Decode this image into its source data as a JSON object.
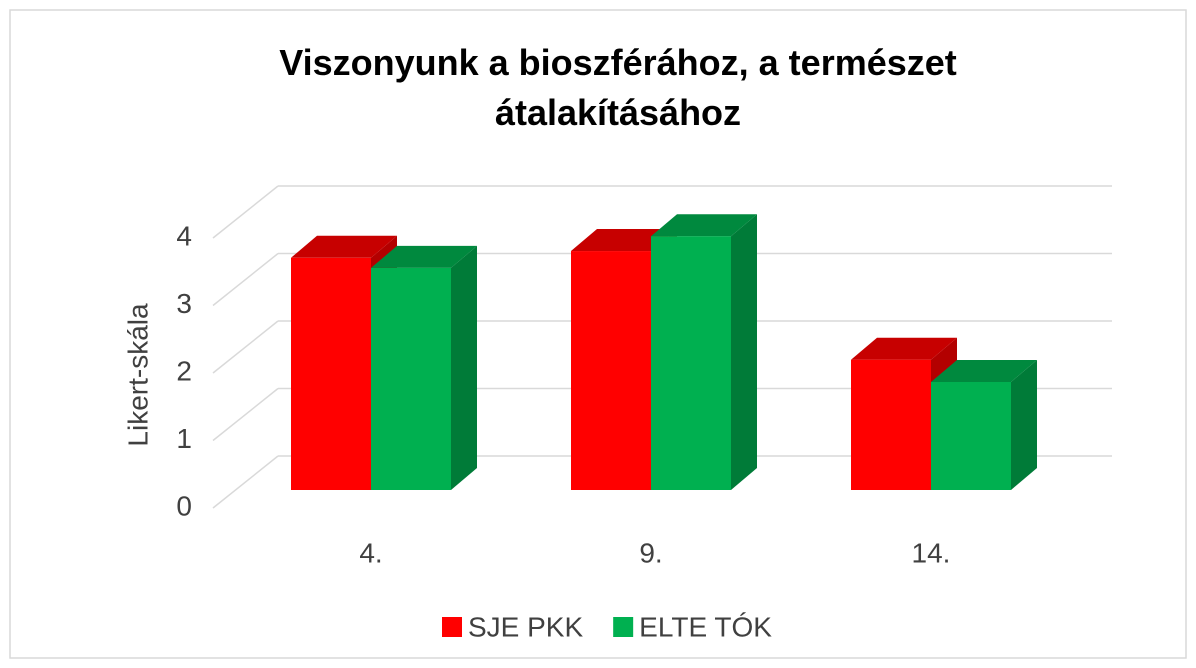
{
  "chart_data": {
    "type": "bar3d",
    "title": "Viszonyunk a bioszférához, a természet átalakításához",
    "ylabel": "Likert-skála",
    "categories": [
      "4.",
      "9.",
      "14."
    ],
    "series": [
      {
        "name": "SJE PKK",
        "color": "#ff0000",
        "values": [
          3.44,
          3.54,
          1.93
        ]
      },
      {
        "name": "ELTE TÓK",
        "color": "#00b050",
        "values": [
          3.29,
          3.76,
          1.6
        ]
      }
    ],
    "ylim": [
      0,
      4
    ],
    "yticks": [
      0,
      1,
      2,
      3,
      4
    ],
    "grid": true,
    "legend": "bottom"
  }
}
